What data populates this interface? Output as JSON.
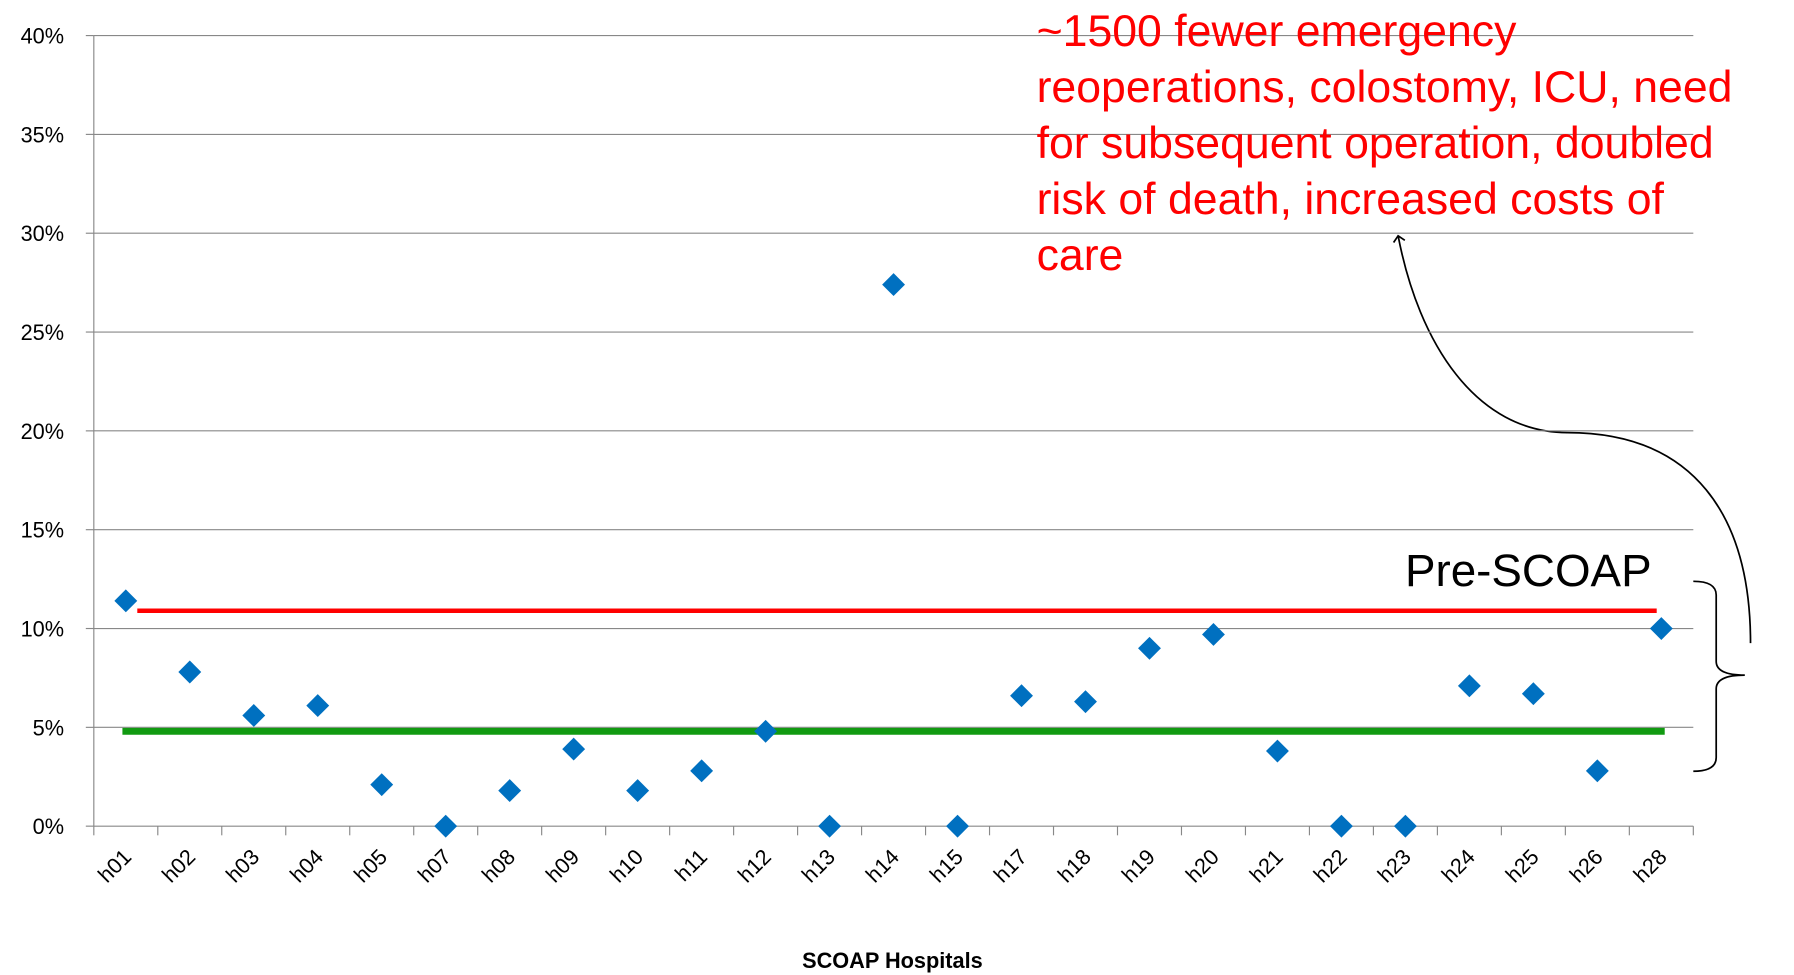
{
  "chart_data": {
    "type": "scatter",
    "x_label": "SCOAP Hospitals",
    "categories": [
      "h01",
      "h02",
      "h03",
      "h04",
      "h05",
      "h07",
      "h08",
      "h09",
      "h10",
      "h11",
      "h12",
      "h13",
      "h14",
      "h15",
      "h17",
      "h18",
      "h19",
      "h20",
      "h21",
      "h22",
      "h23",
      "h24",
      "h25",
      "h26",
      "h28"
    ],
    "values": [
      11.4,
      7.8,
      5.6,
      6.1,
      2.1,
      0,
      1.8,
      3.9,
      1.8,
      2.8,
      4.8,
      0,
      27.4,
      0,
      6.6,
      6.3,
      9.0,
      9.7,
      3.8,
      0,
      0,
      7.1,
      6.7,
      2.8,
      10.0
    ],
    "color": "#0070c0",
    "ylim": [
      0,
      40
    ],
    "yticks": [
      {
        "value": 0,
        "label": "0%"
      },
      {
        "value": 5,
        "label": "5%"
      },
      {
        "value": 10,
        "label": "10%"
      },
      {
        "value": 15,
        "label": "15%"
      },
      {
        "value": 20,
        "label": "20%"
      },
      {
        "value": 25,
        "label": "25%"
      },
      {
        "value": 30,
        "label": "30%"
      },
      {
        "value": 35,
        "label": "35%"
      },
      {
        "value": 40,
        "label": "40%"
      }
    ],
    "grid": true,
    "reference_lines": [
      {
        "value": 10.9,
        "color": "#ff0000"
      },
      {
        "value": 4.8,
        "color": "#119a11"
      }
    ],
    "bracket_label": "Pre-SCOAP",
    "annotation": [
      "~1500 fewer emergency",
      "reoperations, colostomy, ICU, need",
      "for subsequent operation, doubled",
      "risk of death, increased costs of",
      "care"
    ]
  }
}
